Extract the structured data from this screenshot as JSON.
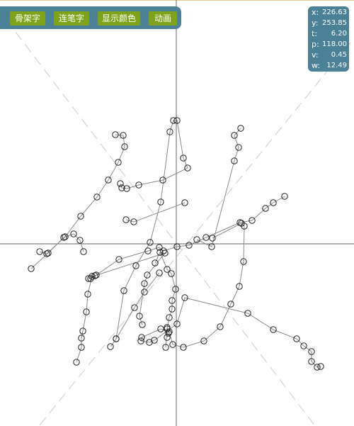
{
  "toolbar": {
    "buttons": [
      {
        "label": "骨架字"
      },
      {
        "label": "连笔字"
      },
      {
        "label": "显示颜色"
      },
      {
        "label": "动画"
      }
    ]
  },
  "info": {
    "rows": [
      {
        "key": "x:",
        "value": "226.63"
      },
      {
        "key": "y:",
        "value": "253.85"
      },
      {
        "key": "t:",
        "value": "6.20"
      },
      {
        "key": "p:",
        "value": "118.00"
      },
      {
        "key": "v:",
        "value": "0.45"
      },
      {
        "key": "w:",
        "value": "12.49"
      }
    ]
  },
  "colors": {
    "panel": "#4b8196",
    "button": "#7ea319",
    "axis": "#666666",
    "stroke": "#8a8a8a",
    "guide": "#cccccc",
    "node": "#222222"
  }
}
